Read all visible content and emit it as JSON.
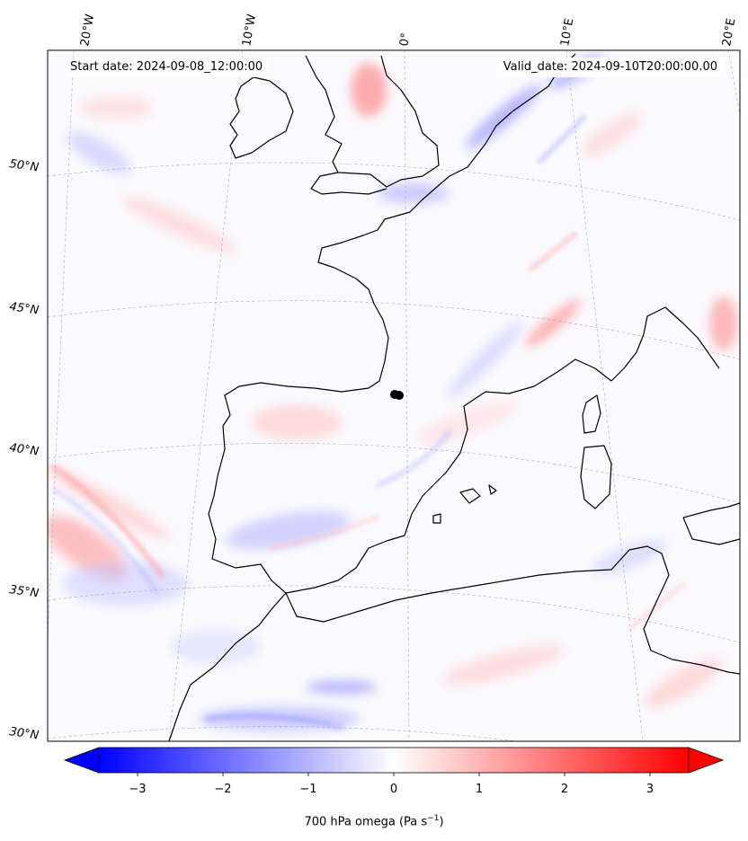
{
  "header": {
    "start_date": "Start date: 2024-09-08_12:00:00",
    "valid_date": "Valid_date: 2024-09-10T20:00:00.00"
  },
  "map": {
    "projection": "conic (Lambert-style)",
    "region": "Western Europe / Iberia / Western Mediterranean",
    "lon_ticks": [
      "20°W",
      "10°W",
      "0°",
      "10°E",
      "20°E"
    ],
    "lat_ticks": [
      "30°N",
      "35°N",
      "40°N",
      "45°N",
      "50°N"
    ],
    "gridlines": true,
    "marker": {
      "lon": 0.0,
      "lat": 42.8
    }
  },
  "colorbar": {
    "label": "700 hPa omega (Pa s",
    "label_unit_exponent": "−1",
    "label_close": ")",
    "ticks": [
      "−3",
      "−2",
      "−1",
      "0",
      "1",
      "2",
      "3"
    ],
    "tick_values": [
      -3,
      -2,
      -1,
      0,
      1,
      2,
      3
    ],
    "range": [
      -3.6,
      3.6
    ],
    "cmap": "bwr",
    "colors": {
      "min": "#0000ff",
      "mid": "#ffffff",
      "max": "#ff0000"
    },
    "extend": "both"
  }
}
